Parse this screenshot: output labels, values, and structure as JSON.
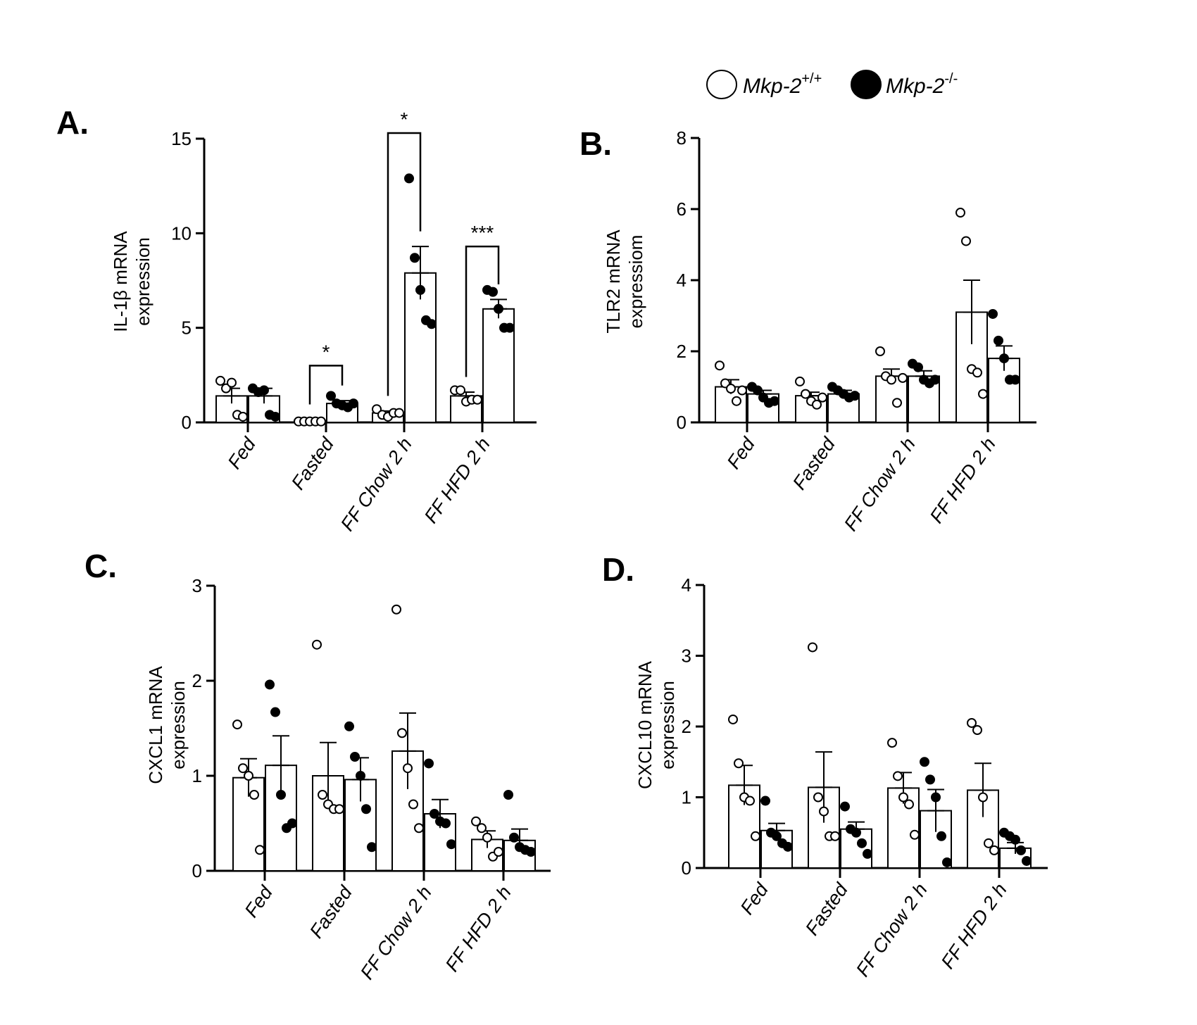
{
  "legend": {
    "wt_label": "Mkp-2",
    "wt_sup": "+/+",
    "ko_label": "Mkp-2",
    "ko_sup": "-/-"
  },
  "chart_data": [
    {
      "type": "bar",
      "panel": "A.",
      "ylabel": [
        "IL-1β mRNA",
        "expression"
      ],
      "ylim": [
        0,
        15
      ],
      "yticks": [
        0,
        5,
        10,
        15
      ],
      "categories": [
        "Fed",
        "Fasted",
        "FF Chow 2 h",
        "FF HFD 2 h"
      ],
      "series": [
        {
          "name": "Mkp-2+/+",
          "fill": "#ffffff",
          "values": [
            1.4,
            0.1,
            0.5,
            1.4
          ],
          "sem": [
            0.4,
            0.05,
            0.1,
            0.2
          ],
          "points": [
            [
              2.2,
              1.8,
              2.1,
              0.4,
              0.3
            ],
            [
              0.05,
              0.05,
              0.05,
              0.05,
              0.05
            ],
            [
              0.7,
              0.4,
              0.3,
              0.5,
              0.5
            ],
            [
              1.7,
              1.7,
              1.1,
              1.2,
              1.2
            ]
          ]
        },
        {
          "name": "Mkp-2-/-",
          "fill": "#000000",
          "values": [
            1.4,
            1.0,
            7.9,
            6.0
          ],
          "sem": [
            0.4,
            0.15,
            1.4,
            0.5
          ],
          "points": [
            [
              1.8,
              1.6,
              1.7,
              0.4,
              0.3
            ],
            [
              1.4,
              1.0,
              0.9,
              0.8,
              1.0
            ],
            [
              12.9,
              8.7,
              7.0,
              5.4,
              5.2
            ],
            [
              7.0,
              6.9,
              6.0,
              5.0,
              5.0
            ]
          ]
        }
      ],
      "significance": [
        {
          "category": 1,
          "label": "*",
          "top": 3.0
        },
        {
          "category": 2,
          "label": "*",
          "top": 15.3
        },
        {
          "category": 3,
          "label": "***",
          "top": 9.3
        }
      ]
    },
    {
      "type": "bar",
      "panel": "B.",
      "ylabel": [
        "TLR2 mRNA",
        "expressiom"
      ],
      "ylim": [
        0,
        8
      ],
      "yticks": [
        0,
        2,
        4,
        6,
        8
      ],
      "categories": [
        "Fed",
        "Fasted",
        "FF Chow 2 h",
        "FF HFD 2 h"
      ],
      "series": [
        {
          "name": "Mkp-2+/+",
          "fill": "#ffffff",
          "values": [
            1.0,
            0.75,
            1.3,
            3.1
          ],
          "sem": [
            0.2,
            0.1,
            0.2,
            0.9
          ],
          "points": [
            [
              1.6,
              1.1,
              0.95,
              0.6,
              0.9
            ],
            [
              1.15,
              0.8,
              0.6,
              0.5,
              0.7
            ],
            [
              2.0,
              1.3,
              1.2,
              0.55,
              1.25
            ],
            [
              5.9,
              5.1,
              1.5,
              1.4,
              0.8
            ]
          ]
        },
        {
          "name": "Mkp-2-/-",
          "fill": "#000000",
          "values": [
            0.8,
            0.8,
            1.3,
            1.8
          ],
          "sem": [
            0.1,
            0.1,
            0.15,
            0.35
          ],
          "points": [
            [
              1.0,
              0.9,
              0.7,
              0.55,
              0.6
            ],
            [
              1.0,
              0.9,
              0.8,
              0.7,
              0.75
            ],
            [
              1.65,
              1.55,
              1.2,
              1.1,
              1.2
            ],
            [
              3.05,
              2.3,
              1.8,
              1.2,
              1.2
            ]
          ]
        }
      ],
      "significance": []
    },
    {
      "type": "bar",
      "panel": "C.",
      "ylabel": [
        "CXCL1 mRNA",
        "expression"
      ],
      "ylim": [
        0,
        3
      ],
      "yticks": [
        0,
        1,
        2,
        3
      ],
      "categories": [
        "Fed",
        "Fasted",
        "FF Chow 2 h",
        "FF HFD 2 h"
      ],
      "series": [
        {
          "name": "Mkp-2+/+",
          "fill": "#ffffff",
          "values": [
            0.98,
            1.0,
            1.26,
            0.33
          ],
          "sem": [
            0.2,
            0.35,
            0.4,
            0.09
          ],
          "points": [
            [
              1.54,
              1.08,
              1.0,
              0.8,
              0.22
            ],
            [
              2.38,
              0.8,
              0.7,
              0.65,
              0.65
            ],
            [
              2.75,
              1.45,
              1.08,
              0.7,
              0.45
            ],
            [
              0.52,
              0.45,
              0.35,
              0.15,
              0.2
            ]
          ]
        },
        {
          "name": "Mkp-2-/-",
          "fill": "#000000",
          "values": [
            1.11,
            0.96,
            0.6,
            0.32
          ],
          "sem": [
            0.31,
            0.23,
            0.15,
            0.12
          ],
          "points": [
            [
              1.96,
              1.67,
              0.8,
              0.45,
              0.5
            ],
            [
              1.52,
              1.2,
              1.0,
              0.65,
              0.25
            ],
            [
              1.13,
              0.6,
              0.52,
              0.5,
              0.28
            ],
            [
              0.8,
              0.35,
              0.25,
              0.22,
              0.2
            ]
          ]
        }
      ],
      "significance": []
    },
    {
      "type": "bar",
      "panel": "D.",
      "ylabel": [
        "CXCL10 mRNA",
        "expression"
      ],
      "ylim": [
        0,
        4
      ],
      "yticks": [
        0,
        1,
        2,
        3,
        4
      ],
      "categories": [
        "Fed",
        "Fasted",
        "FF Chow 2 h",
        "FF HFD 2 h"
      ],
      "series": [
        {
          "name": "Mkp-2+/+",
          "fill": "#ffffff",
          "values": [
            1.17,
            1.14,
            1.13,
            1.1
          ],
          "sem": [
            0.28,
            0.5,
            0.22,
            0.38
          ],
          "points": [
            [
              2.1,
              1.48,
              1.0,
              0.95,
              0.45
            ],
            [
              3.12,
              1.0,
              0.8,
              0.45,
              0.45
            ],
            [
              1.77,
              1.3,
              1.0,
              0.9,
              0.47
            ],
            [
              2.05,
              1.95,
              1.0,
              0.35,
              0.25
            ]
          ]
        },
        {
          "name": "Mkp-2-/-",
          "fill": "#000000",
          "values": [
            0.53,
            0.55,
            0.81,
            0.28
          ],
          "sem": [
            0.1,
            0.1,
            0.3,
            0.08
          ],
          "points": [
            [
              0.95,
              0.5,
              0.45,
              0.35,
              0.3
            ],
            [
              0.87,
              0.55,
              0.5,
              0.35,
              0.2
            ],
            [
              1.5,
              1.25,
              1.0,
              0.45,
              0.08
            ],
            [
              0.5,
              0.45,
              0.4,
              0.25,
              0.1
            ]
          ]
        }
      ],
      "significance": []
    }
  ]
}
